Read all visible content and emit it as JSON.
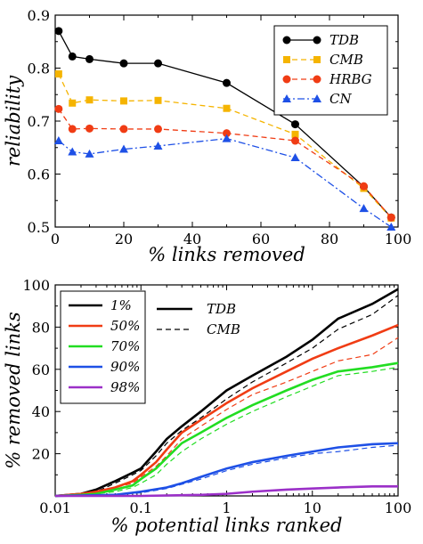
{
  "chart_data": [
    {
      "type": "line",
      "xlabel": "% links removed",
      "ylabel": "reliability",
      "xlim": [
        0,
        100
      ],
      "ylim": [
        0.5,
        0.9
      ],
      "xticks": [
        0,
        20,
        40,
        60,
        80,
        100
      ],
      "yticks": [
        0.5,
        0.6,
        0.7,
        0.8,
        0.9
      ],
      "x": [
        1,
        5,
        10,
        20,
        30,
        50,
        70,
        90,
        98
      ],
      "legend_position": "top-right",
      "series": [
        {
          "name": "TDB",
          "color": "#000000",
          "marker": "circle",
          "dash": "solid",
          "values": [
            0.87,
            0.822,
            0.817,
            0.809,
            0.809,
            0.772,
            0.694,
            0.576,
            0.518
          ]
        },
        {
          "name": "CMB",
          "color": "#f5b400",
          "marker": "square",
          "dash": "dashed",
          "values": [
            0.789,
            0.734,
            0.74,
            0.738,
            0.739,
            0.724,
            0.675,
            0.573,
            0.517
          ]
        },
        {
          "name": "HRBG",
          "color": "#f03c14",
          "marker": "circle",
          "dash": "dashed",
          "values": [
            0.723,
            0.685,
            0.686,
            0.685,
            0.685,
            0.677,
            0.663,
            0.577,
            0.518
          ]
        },
        {
          "name": "CN",
          "color": "#1e50e6",
          "marker": "triangle",
          "dash": "dashdot",
          "values": [
            0.663,
            0.642,
            0.638,
            0.647,
            0.653,
            0.667,
            0.631,
            0.535,
            0.5
          ]
        }
      ]
    },
    {
      "type": "line",
      "xlabel": "% potential links ranked",
      "ylabel": "% removed links",
      "xscale": "log",
      "xlim": [
        0.01,
        100
      ],
      "ylim": [
        0,
        100
      ],
      "xticks": [
        0.01,
        0.1,
        1,
        10,
        100
      ],
      "xticklabels": [
        "0.01",
        "0.1",
        "1",
        "10",
        "100"
      ],
      "yticks": [
        20,
        40,
        60,
        80,
        100
      ],
      "legend_position": "top-left",
      "method_legend": [
        {
          "name": "TDB",
          "style": "solid"
        },
        {
          "name": "CMB",
          "style": "dashed"
        }
      ],
      "series": [
        {
          "name": "1%",
          "color": "#000000",
          "method": "TDB",
          "x": [
            0.01,
            0.02,
            0.03,
            0.05,
            0.08,
            0.1,
            0.15,
            0.2,
            0.3,
            0.5,
            1,
            2,
            5,
            10,
            20,
            50,
            100
          ],
          "values": [
            0,
            1,
            3,
            7,
            11,
            13,
            21,
            27,
            33,
            40,
            50,
            57,
            66,
            74,
            84,
            91,
            98
          ]
        },
        {
          "name": "1%",
          "color": "#000000",
          "method": "CMB",
          "x": [
            0.01,
            0.02,
            0.03,
            0.05,
            0.08,
            0.1,
            0.15,
            0.2,
            0.3,
            0.5,
            1,
            2,
            5,
            10,
            20,
            50,
            100
          ],
          "values": [
            0,
            1,
            2,
            6,
            10,
            12,
            19,
            25,
            31,
            37,
            46,
            54,
            63,
            70,
            79,
            86,
            95
          ]
        },
        {
          "name": "50%",
          "color": "#f03c14",
          "method": "TDB",
          "x": [
            0.01,
            0.02,
            0.03,
            0.05,
            0.08,
            0.1,
            0.15,
            0.2,
            0.3,
            0.5,
            1,
            2,
            5,
            10,
            20,
            50,
            100
          ],
          "values": [
            0,
            1,
            2,
            4,
            7,
            10,
            16,
            22,
            30,
            36,
            44,
            51,
            59,
            65,
            70,
            76,
            81
          ]
        },
        {
          "name": "50%",
          "color": "#f03c14",
          "method": "CMB",
          "x": [
            0.01,
            0.02,
            0.03,
            0.05,
            0.08,
            0.1,
            0.15,
            0.2,
            0.3,
            0.5,
            1,
            2,
            5,
            10,
            20,
            50,
            100
          ],
          "values": [
            0,
            1,
            2,
            4,
            6,
            9,
            14,
            19,
            27,
            33,
            41,
            48,
            54,
            59,
            64,
            67,
            75
          ]
        },
        {
          "name": "70%",
          "color": "#22dd22",
          "method": "TDB",
          "x": [
            0.01,
            0.02,
            0.03,
            0.05,
            0.08,
            0.1,
            0.15,
            0.2,
            0.3,
            0.5,
            1,
            2,
            5,
            10,
            20,
            50,
            100
          ],
          "values": [
            0,
            0.5,
            1,
            3,
            5,
            8,
            13,
            18,
            25,
            30,
            37,
            43,
            50,
            55,
            59,
            61,
            63
          ]
        },
        {
          "name": "70%",
          "color": "#22dd22",
          "method": "CMB",
          "x": [
            0.01,
            0.02,
            0.03,
            0.05,
            0.08,
            0.1,
            0.15,
            0.2,
            0.3,
            0.5,
            1,
            2,
            5,
            10,
            20,
            50,
            100
          ],
          "values": [
            0,
            0.5,
            1,
            2,
            4,
            6,
            10,
            15,
            21,
            27,
            34,
            40,
            47,
            52,
            57,
            59,
            61
          ]
        },
        {
          "name": "90%",
          "color": "#1e50e6",
          "method": "TDB",
          "x": [
            0.01,
            0.05,
            0.1,
            0.2,
            0.3,
            0.5,
            1,
            2,
            5,
            10,
            20,
            50,
            100
          ],
          "values": [
            0,
            0.5,
            2,
            4,
            6,
            9,
            13,
            16,
            19,
            21,
            23,
            24.5,
            25
          ]
        },
        {
          "name": "90%",
          "color": "#1e50e6",
          "method": "CMB",
          "x": [
            0.01,
            0.05,
            0.1,
            0.2,
            0.3,
            0.5,
            1,
            2,
            5,
            10,
            20,
            50,
            100
          ],
          "values": [
            0,
            0.5,
            1.5,
            3.5,
            5.5,
            8,
            12,
            15,
            18,
            20,
            21,
            23,
            24
          ]
        },
        {
          "name": "98%",
          "color": "#9b30c8",
          "method": "TDB",
          "x": [
            0.01,
            0.1,
            0.5,
            1,
            2,
            5,
            10,
            20,
            50,
            100
          ],
          "values": [
            0,
            0,
            0.5,
            1,
            2,
            3,
            3.5,
            4,
            4.5,
            4.5
          ]
        },
        {
          "name": "98%",
          "color": "#9b30c8",
          "method": "CMB",
          "x": [
            0.01,
            0.1,
            0.5,
            1,
            2,
            5,
            10,
            20,
            50,
            100
          ],
          "values": [
            0,
            0,
            0.5,
            1,
            2,
            3,
            3.5,
            4,
            4.5,
            4.5
          ]
        }
      ]
    }
  ]
}
